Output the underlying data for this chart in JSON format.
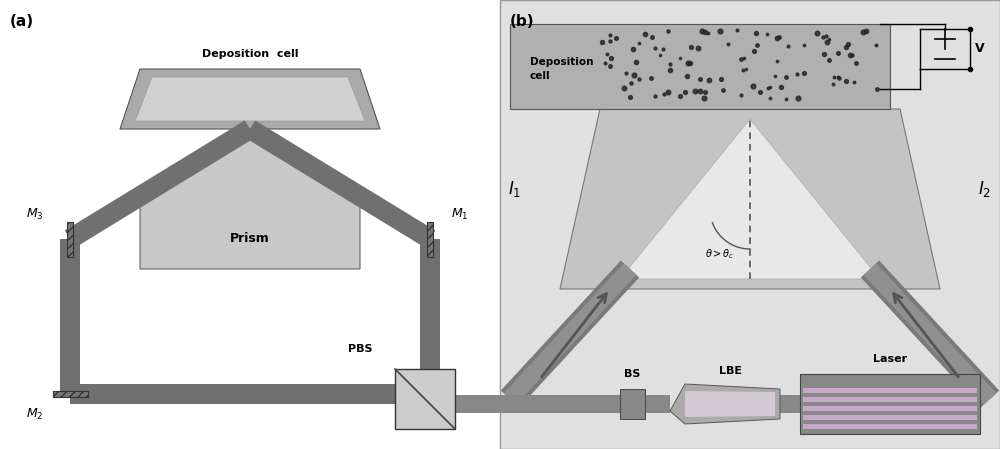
{
  "fig_width": 10.0,
  "fig_height": 4.49,
  "bg_color": "#ffffff",
  "dark_gray": "#606060",
  "mid_gray": "#888888",
  "light_gray": "#c0c0c0",
  "lighter_gray": "#d8d8d8",
  "beam_gray": "#707070",
  "label_a": "(a)",
  "label_b": "(b)",
  "label_prism": "Prism",
  "label_deposition_a": "Deposition  cell",
  "label_deposition_b": "Deposition\ncell",
  "label_PBS": "PBS",
  "label_BS": "BS",
  "label_LBE": "LBE",
  "label_Laser": "Laser",
  "label_M1": "M1",
  "label_M2": "M2",
  "label_M3": "M3",
  "label_I1": "I1",
  "label_I2": "I2",
  "label_V": "V",
  "label_angle": "theta>theta_c"
}
